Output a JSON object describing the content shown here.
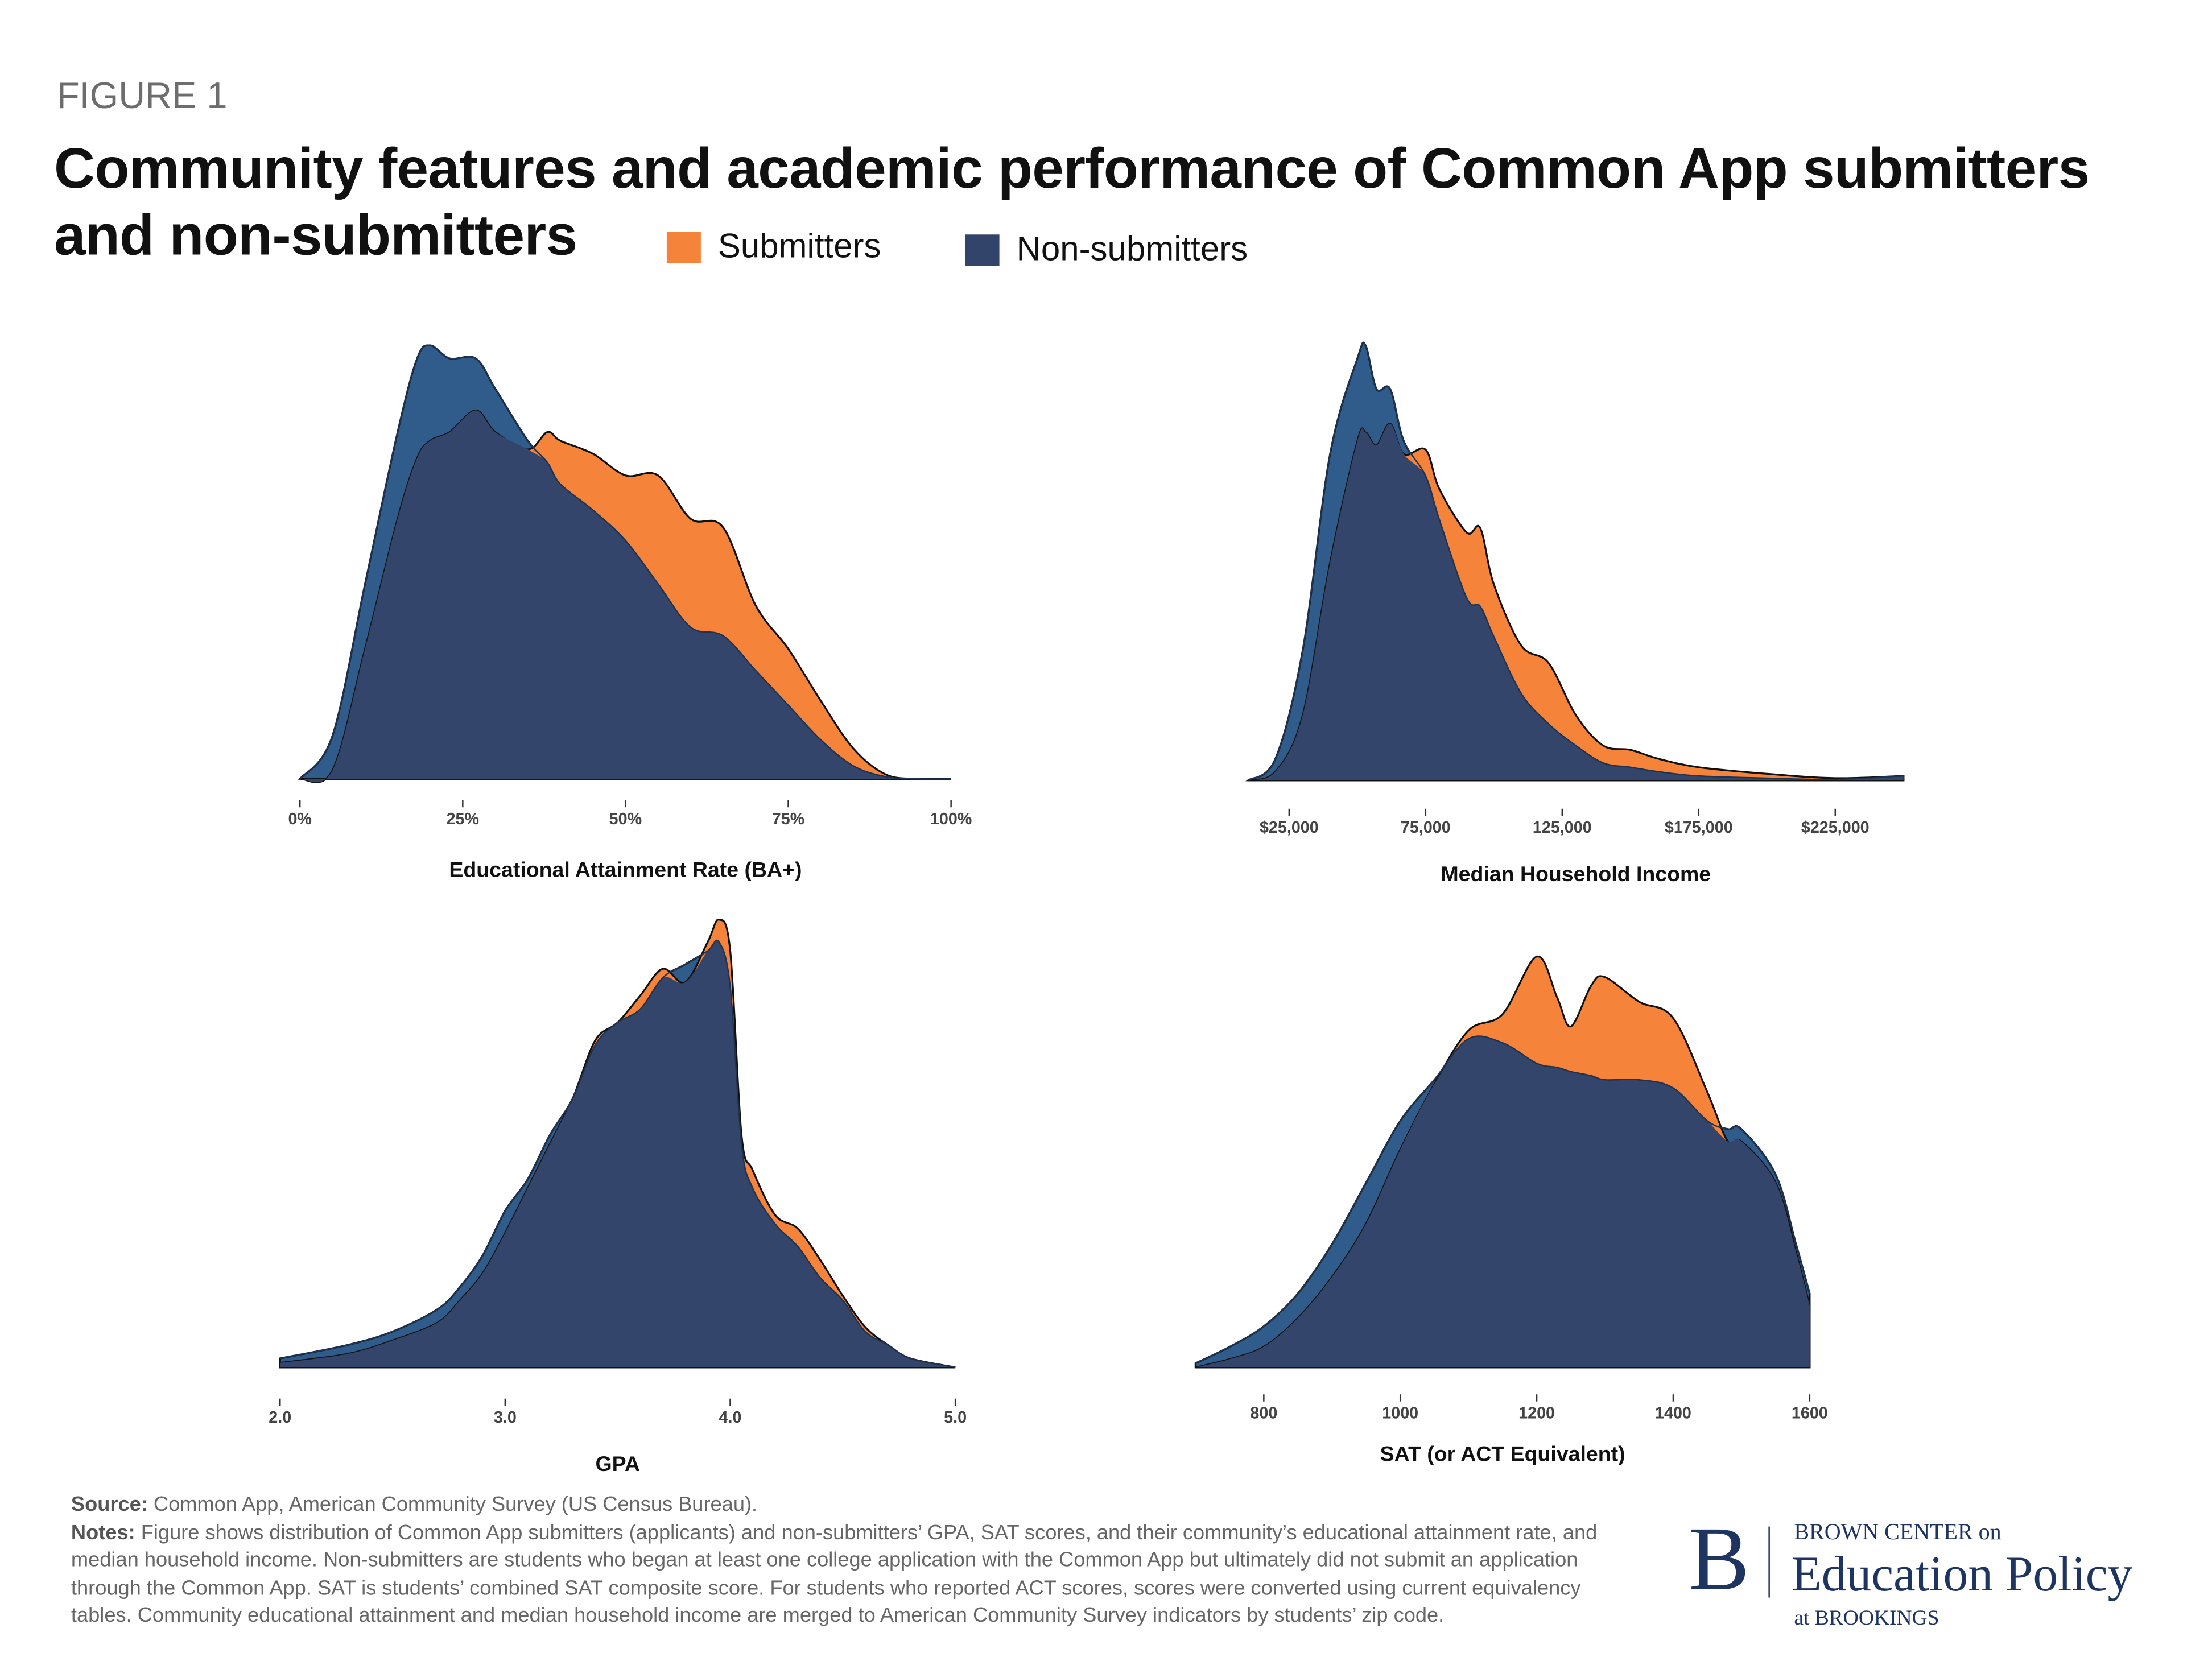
{
  "figure_label": "FIGURE 1",
  "title": "Community features and academic performance of Common App submitters and non-submitters",
  "legend": [
    {
      "label": "Submitters",
      "color": "#f5843a"
    },
    {
      "label": "Non-submitters",
      "color": "#33446a"
    }
  ],
  "colors": {
    "submitters": "#f5843a",
    "nonsubmitters_only": "#2f5c8a",
    "overlap": "#33456a"
  },
  "chart_data": [
    {
      "type": "area",
      "title": "",
      "xlabel": "Educational Attainment Rate (BA+)",
      "xlim": [
        0,
        100
      ],
      "ticks": [
        0,
        25,
        50,
        75,
        100
      ],
      "tick_labels": [
        "0%",
        "25%",
        "50%",
        "75%",
        "100%"
      ],
      "x": [
        0,
        5,
        10,
        15,
        18,
        20,
        23,
        27,
        30,
        35,
        38,
        40,
        45,
        50,
        55,
        60,
        65,
        70,
        75,
        80,
        85,
        90,
        95,
        100
      ],
      "series": [
        {
          "name": "Non-submitters",
          "values": [
            0,
            0.1,
            0.45,
            0.8,
            0.97,
            1.0,
            0.97,
            0.97,
            0.9,
            0.78,
            0.73,
            0.68,
            0.62,
            0.55,
            0.45,
            0.35,
            0.33,
            0.25,
            0.17,
            0.09,
            0.03,
            0.005,
            0,
            0
          ]
        },
        {
          "name": "Submitters",
          "values": [
            0,
            0.02,
            0.3,
            0.6,
            0.74,
            0.78,
            0.8,
            0.85,
            0.8,
            0.76,
            0.8,
            0.78,
            0.75,
            0.7,
            0.7,
            0.6,
            0.58,
            0.4,
            0.3,
            0.18,
            0.07,
            0.01,
            0,
            0
          ]
        }
      ]
    },
    {
      "type": "area",
      "title": "",
      "xlabel": "Median Household Income",
      "xlim": [
        10000,
        250000
      ],
      "ticks": [
        25000,
        75000,
        125000,
        175000,
        225000
      ],
      "tick_labels": [
        "$25,000",
        "75,000",
        "125,000",
        "$175,000",
        "$225,000"
      ],
      "x": [
        10000,
        20000,
        30000,
        40000,
        50000,
        53000,
        57000,
        62000,
        67000,
        75000,
        80000,
        90000,
        95000,
        100000,
        110000,
        120000,
        130000,
        140000,
        150000,
        160000,
        175000,
        200000,
        225000,
        250000
      ],
      "series": [
        {
          "name": "Non-submitters",
          "values": [
            0,
            0.05,
            0.3,
            0.75,
            0.97,
            1.0,
            0.9,
            0.9,
            0.78,
            0.7,
            0.6,
            0.42,
            0.4,
            0.33,
            0.2,
            0.13,
            0.08,
            0.04,
            0.03,
            0.02,
            0.01,
            0.005,
            0.002,
            0.01
          ]
        },
        {
          "name": "Submitters",
          "values": [
            0,
            0.02,
            0.15,
            0.5,
            0.78,
            0.8,
            0.77,
            0.82,
            0.75,
            0.76,
            0.67,
            0.57,
            0.58,
            0.45,
            0.31,
            0.27,
            0.15,
            0.08,
            0.07,
            0.05,
            0.03,
            0.015,
            0.005,
            0.01
          ]
        }
      ]
    },
    {
      "type": "area",
      "title": "",
      "xlabel": "GPA",
      "xlim": [
        2,
        5
      ],
      "ticks": [
        2,
        3,
        4,
        5
      ],
      "tick_labels": [
        "2.0",
        "3.0",
        "4.0",
        "5.0"
      ],
      "x": [
        2.0,
        2.3,
        2.5,
        2.7,
        2.8,
        2.9,
        3.0,
        3.1,
        3.2,
        3.3,
        3.4,
        3.5,
        3.6,
        3.7,
        3.8,
        3.9,
        3.95,
        4.0,
        4.05,
        4.1,
        4.2,
        4.3,
        4.4,
        4.5,
        4.6,
        4.7,
        4.8,
        5.0
      ],
      "series": [
        {
          "name": "Non-submitters",
          "values": [
            0.02,
            0.05,
            0.08,
            0.13,
            0.18,
            0.25,
            0.35,
            0.42,
            0.52,
            0.6,
            0.72,
            0.77,
            0.8,
            0.87,
            0.9,
            0.93,
            0.95,
            0.85,
            0.5,
            0.4,
            0.32,
            0.27,
            0.2,
            0.15,
            0.08,
            0.05,
            0.02,
            0
          ]
        },
        {
          "name": "Submitters",
          "values": [
            0.01,
            0.03,
            0.06,
            0.1,
            0.15,
            0.21,
            0.3,
            0.4,
            0.5,
            0.6,
            0.73,
            0.77,
            0.83,
            0.89,
            0.86,
            0.95,
            1.0,
            0.93,
            0.52,
            0.44,
            0.34,
            0.31,
            0.24,
            0.16,
            0.09,
            0.05,
            0.02,
            0
          ]
        }
      ]
    },
    {
      "type": "area",
      "title": "",
      "xlabel": "SAT (or ACT Equivalent)",
      "xlim": [
        700,
        1600
      ],
      "ticks": [
        800,
        1000,
        1200,
        1400,
        1600
      ],
      "tick_labels": [
        "800",
        "1000",
        "1200",
        "1400",
        "1600"
      ],
      "x": [
        700,
        750,
        800,
        850,
        900,
        950,
        1000,
        1050,
        1100,
        1150,
        1200,
        1230,
        1250,
        1280,
        1300,
        1350,
        1400,
        1450,
        1480,
        1500,
        1550,
        1580,
        1600
      ],
      "series": [
        {
          "name": "Non-submitters",
          "values": [
            0.01,
            0.05,
            0.1,
            0.18,
            0.3,
            0.45,
            0.6,
            0.7,
            0.8,
            0.79,
            0.74,
            0.73,
            0.72,
            0.71,
            0.7,
            0.7,
            0.68,
            0.6,
            0.58,
            0.58,
            0.47,
            0.3,
            0.18
          ]
        },
        {
          "name": "Submitters",
          "values": [
            0,
            0.02,
            0.05,
            0.12,
            0.22,
            0.35,
            0.53,
            0.69,
            0.82,
            0.86,
            1.0,
            0.9,
            0.83,
            0.93,
            0.95,
            0.89,
            0.85,
            0.67,
            0.55,
            0.55,
            0.45,
            0.28,
            0.15
          ]
        }
      ]
    }
  ],
  "footnote": {
    "source_label": "Source:",
    "source": " Common App, American Community Survey (US Census Bureau).",
    "notes_label": "Notes:",
    "notes": " Figure shows distribution of Common App submitters (applicants) and non-submitters’ GPA, SAT scores, and their community’s educational attainment rate, and median household income. Non-submitters are students who began at least one college application with the Common App but ultimately did not submit an application through the Common App. SAT is students’ combined SAT composite score. For students who reported ACT scores, scores were converted using current equivalency tables. Community educational attainment and median household income are merged to American Community Survey indicators by students’ zip code."
  },
  "logo": {
    "mark": "B",
    "line1": "BROWN CENTER on",
    "line2": "Education Policy",
    "line3": "at BROOKINGS"
  }
}
